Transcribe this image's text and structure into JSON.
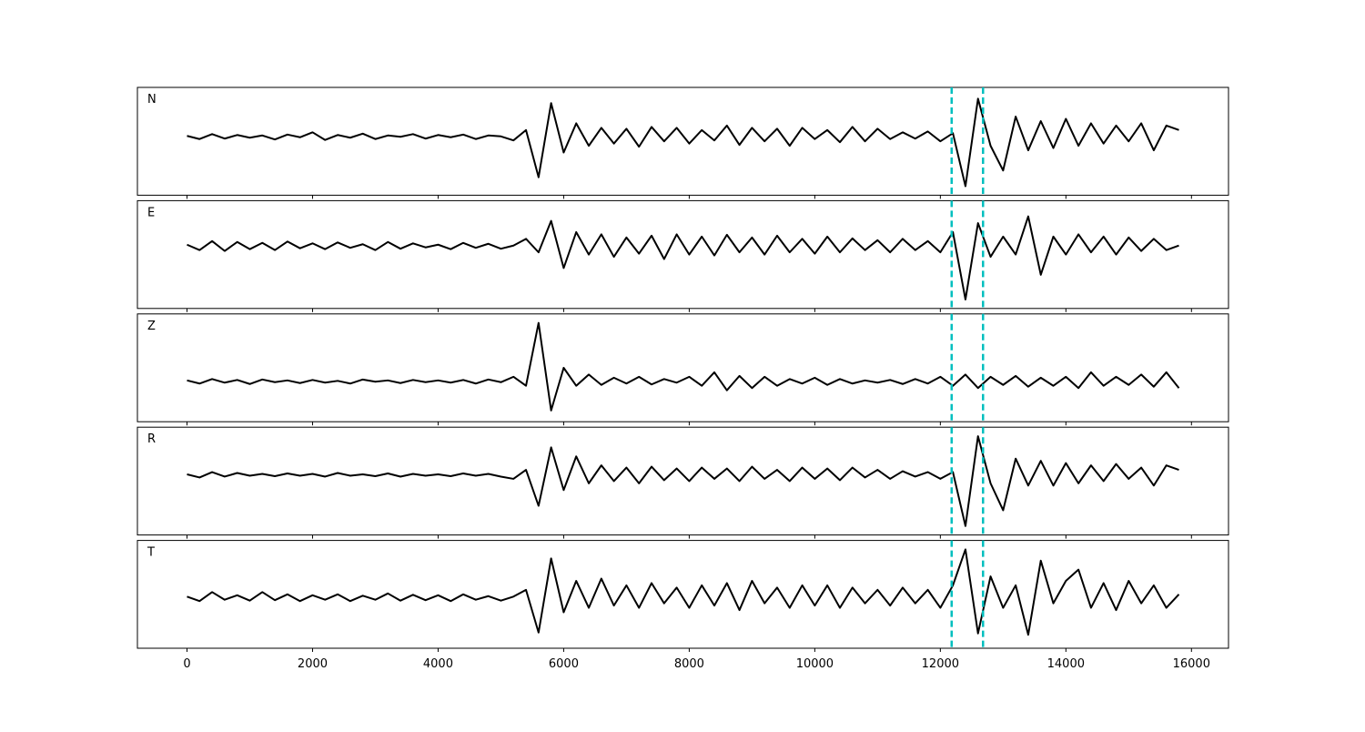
{
  "chart_data": {
    "type": "line",
    "layout": "stacked",
    "xlim": [
      -790,
      16590
    ],
    "xticks": [
      0,
      2000,
      4000,
      6000,
      8000,
      10000,
      12000,
      14000,
      16000
    ],
    "ylim": [
      -1.2,
      1.2
    ],
    "x": [
      0,
      200,
      400,
      600,
      800,
      1000,
      1200,
      1400,
      1600,
      1800,
      2000,
      2200,
      2400,
      2600,
      2800,
      3000,
      3200,
      3400,
      3600,
      3800,
      4000,
      4200,
      4400,
      4600,
      4800,
      5000,
      5200,
      5400,
      5600,
      5800,
      6000,
      6200,
      6400,
      6600,
      6800,
      7000,
      7200,
      7400,
      7600,
      7800,
      8000,
      8200,
      8400,
      8600,
      8800,
      9000,
      9200,
      9400,
      9600,
      9800,
      10000,
      10200,
      10400,
      10600,
      10800,
      11000,
      11200,
      11400,
      11600,
      11800,
      12000,
      12200,
      12400,
      12600,
      12800,
      13000,
      13200,
      13400,
      13600,
      13800,
      14000,
      14200,
      14400,
      14600,
      14800,
      15000,
      15200,
      15400,
      15600,
      15800
    ],
    "series": [
      {
        "name": "N",
        "color": "#000000",
        "values": [
          0.12,
          0.05,
          0.16,
          0.06,
          0.14,
          0.08,
          0.13,
          0.04,
          0.15,
          0.09,
          0.2,
          0.03,
          0.14,
          0.08,
          0.17,
          0.05,
          0.13,
          0.1,
          0.16,
          0.06,
          0.14,
          0.09,
          0.15,
          0.05,
          0.13,
          0.11,
          0.02,
          0.25,
          -0.8,
          0.85,
          -0.25,
          0.4,
          -0.1,
          0.3,
          -0.05,
          0.28,
          -0.12,
          0.32,
          0.0,
          0.3,
          -0.05,
          0.25,
          0.02,
          0.35,
          -0.08,
          0.3,
          0.0,
          0.28,
          -0.1,
          0.3,
          0.05,
          0.25,
          -0.02,
          0.32,
          0.0,
          0.28,
          0.05,
          0.2,
          0.06,
          0.22,
          0.0,
          0.18,
          -1.0,
          0.95,
          -0.1,
          -0.65,
          0.55,
          -0.2,
          0.45,
          -0.15,
          0.5,
          -0.1,
          0.4,
          -0.05,
          0.35,
          0.0,
          0.4,
          -0.2,
          0.35,
          0.25
        ]
      },
      {
        "name": "E",
        "color": "#000000",
        "values": [
          0.22,
          0.1,
          0.3,
          0.08,
          0.28,
          0.12,
          0.26,
          0.1,
          0.29,
          0.14,
          0.25,
          0.12,
          0.27,
          0.15,
          0.23,
          0.1,
          0.28,
          0.13,
          0.25,
          0.16,
          0.22,
          0.12,
          0.26,
          0.15,
          0.24,
          0.13,
          0.2,
          0.35,
          0.05,
          0.75,
          -0.3,
          0.5,
          0.0,
          0.45,
          -0.05,
          0.38,
          0.02,
          0.42,
          -0.1,
          0.45,
          0.0,
          0.4,
          -0.02,
          0.44,
          0.05,
          0.38,
          0.0,
          0.42,
          0.05,
          0.35,
          0.02,
          0.4,
          0.05,
          0.36,
          0.1,
          0.32,
          0.05,
          0.35,
          0.1,
          0.3,
          0.05,
          0.5,
          -1.0,
          0.7,
          -0.05,
          0.4,
          0.0,
          0.85,
          -0.45,
          0.4,
          0.0,
          0.45,
          0.05,
          0.4,
          0.0,
          0.38,
          0.08,
          0.35,
          0.1,
          0.2
        ]
      },
      {
        "name": "Z",
        "color": "#000000",
        "values": [
          -0.28,
          -0.35,
          -0.25,
          -0.33,
          -0.27,
          -0.36,
          -0.26,
          -0.32,
          -0.28,
          -0.34,
          -0.27,
          -0.33,
          -0.29,
          -0.35,
          -0.26,
          -0.31,
          -0.28,
          -0.34,
          -0.27,
          -0.32,
          -0.28,
          -0.33,
          -0.27,
          -0.35,
          -0.26,
          -0.32,
          -0.2,
          -0.4,
          1.0,
          -0.95,
          0.0,
          -0.4,
          -0.15,
          -0.38,
          -0.22,
          -0.35,
          -0.2,
          -0.37,
          -0.25,
          -0.33,
          -0.2,
          -0.4,
          -0.1,
          -0.5,
          -0.18,
          -0.45,
          -0.2,
          -0.4,
          -0.25,
          -0.35,
          -0.22,
          -0.38,
          -0.25,
          -0.35,
          -0.28,
          -0.33,
          -0.27,
          -0.36,
          -0.25,
          -0.35,
          -0.2,
          -0.4,
          -0.15,
          -0.45,
          -0.2,
          -0.38,
          -0.18,
          -0.42,
          -0.22,
          -0.4,
          -0.2,
          -0.45,
          -0.1,
          -0.4,
          -0.2,
          -0.38,
          -0.15,
          -0.42,
          -0.1,
          -0.45
        ]
      },
      {
        "name": "R",
        "color": "#000000",
        "values": [
          0.15,
          0.08,
          0.2,
          0.1,
          0.18,
          0.12,
          0.16,
          0.11,
          0.17,
          0.12,
          0.16,
          0.1,
          0.18,
          0.12,
          0.15,
          0.11,
          0.17,
          0.1,
          0.16,
          0.12,
          0.15,
          0.11,
          0.17,
          0.12,
          0.16,
          0.1,
          0.05,
          0.25,
          -0.55,
          0.75,
          -0.2,
          0.55,
          -0.05,
          0.35,
          0.0,
          0.3,
          -0.05,
          0.32,
          0.02,
          0.28,
          0.0,
          0.3,
          0.05,
          0.28,
          0.0,
          0.32,
          0.05,
          0.25,
          0.0,
          0.3,
          0.05,
          0.28,
          0.02,
          0.3,
          0.08,
          0.25,
          0.05,
          0.22,
          0.1,
          0.2,
          0.05,
          0.2,
          -1.0,
          1.0,
          -0.05,
          -0.65,
          0.5,
          -0.1,
          0.45,
          -0.1,
          0.4,
          -0.05,
          0.35,
          0.0,
          0.38,
          0.05,
          0.3,
          -0.1,
          0.35,
          0.25
        ]
      },
      {
        "name": "T",
        "color": "#000000",
        "values": [
          -0.05,
          -0.15,
          0.05,
          -0.12,
          -0.02,
          -0.14,
          0.05,
          -0.13,
          0.0,
          -0.15,
          -0.02,
          -0.12,
          0.0,
          -0.15,
          -0.03,
          -0.12,
          0.02,
          -0.14,
          -0.01,
          -0.13,
          -0.02,
          -0.15,
          0.0,
          -0.12,
          -0.04,
          -0.14,
          -0.05,
          0.1,
          -0.85,
          0.8,
          -0.4,
          0.3,
          -0.3,
          0.35,
          -0.25,
          0.2,
          -0.3,
          0.25,
          -0.2,
          0.15,
          -0.3,
          0.2,
          -0.25,
          0.25,
          -0.35,
          0.3,
          -0.2,
          0.15,
          -0.3,
          0.2,
          -0.25,
          0.2,
          -0.3,
          0.15,
          -0.2,
          0.1,
          -0.25,
          0.15,
          -0.2,
          0.1,
          -0.3,
          0.2,
          1.0,
          -0.87,
          0.4,
          -0.3,
          0.2,
          -0.9,
          0.75,
          -0.2,
          0.3,
          0.55,
          -0.3,
          0.25,
          -0.35,
          0.3,
          -0.2,
          0.2,
          -0.3,
          0.0
        ]
      }
    ],
    "markers": {
      "values": [
        12180,
        12680
      ],
      "color": "#00bfbf",
      "style": "dashed"
    }
  }
}
